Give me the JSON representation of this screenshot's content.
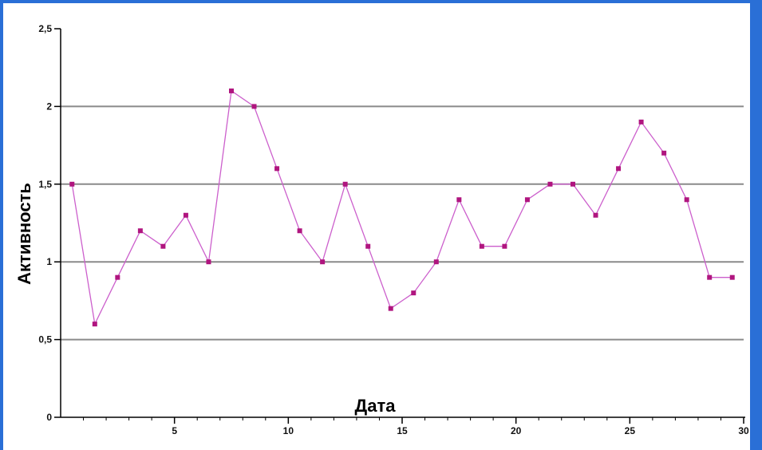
{
  "chart_data": {
    "type": "line",
    "xlabel": "Дата",
    "ylabel": "Активность",
    "xlim": [
      0,
      30
    ],
    "ylim": [
      0,
      2.5
    ],
    "x_ticks": [
      5,
      10,
      15,
      20,
      25,
      30
    ],
    "y_ticks": [
      0,
      0.5,
      1,
      1.5,
      2,
      2.5
    ],
    "y_tick_labels": [
      "0",
      "0,5",
      "1",
      "1,5",
      "2",
      "2,5"
    ],
    "grid": "horizontal",
    "series": [
      {
        "color": "#cc5fcc",
        "marker_color": "#b0157f",
        "x": [
          0.5,
          1.5,
          2.5,
          3.5,
          4.5,
          5.5,
          6.5,
          7.5,
          8.5,
          9.5,
          10.5,
          11.5,
          12.5,
          13.5,
          14.5,
          15.5,
          16.5,
          17.5,
          18.5,
          19.5,
          20.5,
          21.5,
          22.5,
          23.5,
          24.5,
          25.5,
          26.5,
          27.5,
          28.5,
          29.5
        ],
        "values": [
          1.5,
          0.6,
          0.9,
          1.2,
          1.1,
          1.3,
          1.0,
          2.1,
          2.0,
          1.6,
          1.2,
          1.0,
          1.5,
          1.1,
          0.7,
          0.8,
          1.0,
          1.4,
          1.1,
          1.1,
          1.4,
          1.5,
          1.5,
          1.3,
          1.6,
          1.9,
          1.7,
          1.4,
          0.9,
          0.9
        ]
      }
    ]
  },
  "colors": {
    "background_frame": "#2a6fd6",
    "grid": "#8a8a8a",
    "axis": "#000000"
  }
}
